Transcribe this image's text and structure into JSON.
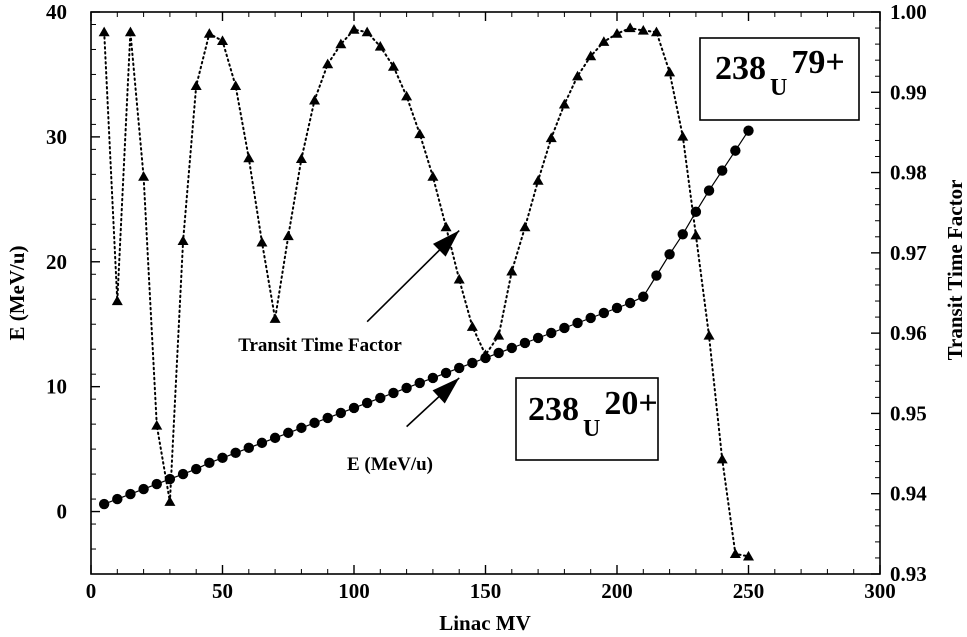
{
  "chart_data": {
    "type": "line",
    "xlabel": "Linac MV",
    "ylabel": "E (MeV/u)",
    "y2label": "Transit Time Factor",
    "xlim": [
      0,
      300
    ],
    "ylim": [
      -5,
      40
    ],
    "y2lim": [
      0.93,
      1.0
    ],
    "xticks": [
      "0",
      "50",
      "100",
      "150",
      "200",
      "250",
      "300"
    ],
    "yticks": [
      "0",
      "10",
      "20",
      "30",
      "40"
    ],
    "y2ticks": [
      "0.93",
      "0.94",
      "0.95",
      "0.96",
      "0.97",
      "0.98",
      "0.99",
      "1.00"
    ],
    "grid": false,
    "series": [
      {
        "name": "E (MeV/u)",
        "axis": "left",
        "marker": "circle",
        "line": "solid",
        "x": [
          5,
          10,
          15,
          20,
          25,
          30,
          35,
          40,
          45,
          50,
          55,
          60,
          65,
          70,
          75,
          80,
          85,
          90,
          95,
          100,
          105,
          110,
          115,
          120,
          125,
          130,
          135,
          140,
          145,
          150,
          155,
          160,
          165,
          170,
          175,
          180,
          185,
          190,
          195,
          200,
          205,
          210,
          215,
          220,
          225,
          230,
          235,
          240,
          245,
          250
        ],
        "y": [
          0.6,
          1.0,
          1.4,
          1.8,
          2.2,
          2.6,
          3.0,
          3.4,
          3.9,
          4.3,
          4.7,
          5.1,
          5.5,
          5.9,
          6.3,
          6.7,
          7.1,
          7.5,
          7.9,
          8.3,
          8.7,
          9.1,
          9.5,
          9.9,
          10.3,
          10.7,
          11.1,
          11.5,
          11.9,
          12.3,
          12.7,
          13.1,
          13.5,
          13.9,
          14.3,
          14.7,
          15.1,
          15.5,
          15.9,
          16.3,
          16.7,
          17.2,
          18.9,
          20.6,
          22.2,
          24.0,
          25.7,
          27.3,
          28.9,
          30.5
        ]
      },
      {
        "name": "Transit Time Factor",
        "axis": "right",
        "marker": "triangle",
        "line": "dotted",
        "x": [
          5,
          10,
          15,
          20,
          25,
          30,
          35,
          40,
          45,
          50,
          55,
          60,
          65,
          70,
          75,
          80,
          85,
          90,
          95,
          100,
          105,
          110,
          115,
          120,
          125,
          130,
          135,
          140,
          145,
          150,
          155,
          160,
          165,
          170,
          175,
          180,
          185,
          190,
          195,
          200,
          205,
          210,
          215,
          220,
          225,
          230,
          235,
          240,
          245,
          250
        ],
        "y": [
          0.9975,
          0.964,
          0.9975,
          0.9795,
          0.9485,
          0.939,
          0.9715,
          0.9908,
          0.9973,
          0.9964,
          0.9908,
          0.9818,
          0.9713,
          0.9618,
          0.9721,
          0.9817,
          0.989,
          0.9935,
          0.996,
          0.9978,
          0.9975,
          0.9957,
          0.9932,
          0.9895,
          0.9848,
          0.9795,
          0.9732,
          0.9667,
          0.9608,
          0.9573,
          0.9597,
          0.9677,
          0.9732,
          0.979,
          0.9843,
          0.9885,
          0.992,
          0.9945,
          0.9963,
          0.9973,
          0.998,
          0.9977,
          0.9975,
          0.9925,
          0.9845,
          0.9722,
          0.9597,
          0.9443,
          0.9325,
          0.9322
        ]
      }
    ],
    "annotations": [
      {
        "text": "Transit Time Factor",
        "arrow_from": [
          105,
          15.2
        ],
        "arrow_to": [
          140,
          22.5
        ]
      },
      {
        "text": "E (MeV/u)",
        "arrow_from": [
          120,
          6.8
        ],
        "arrow_to": [
          140,
          10.7
        ]
      }
    ],
    "labels": [
      {
        "main": "238",
        "sub": "U",
        "sup": "79+"
      },
      {
        "main": "238",
        "sub": "U",
        "sup": "20+"
      }
    ]
  }
}
